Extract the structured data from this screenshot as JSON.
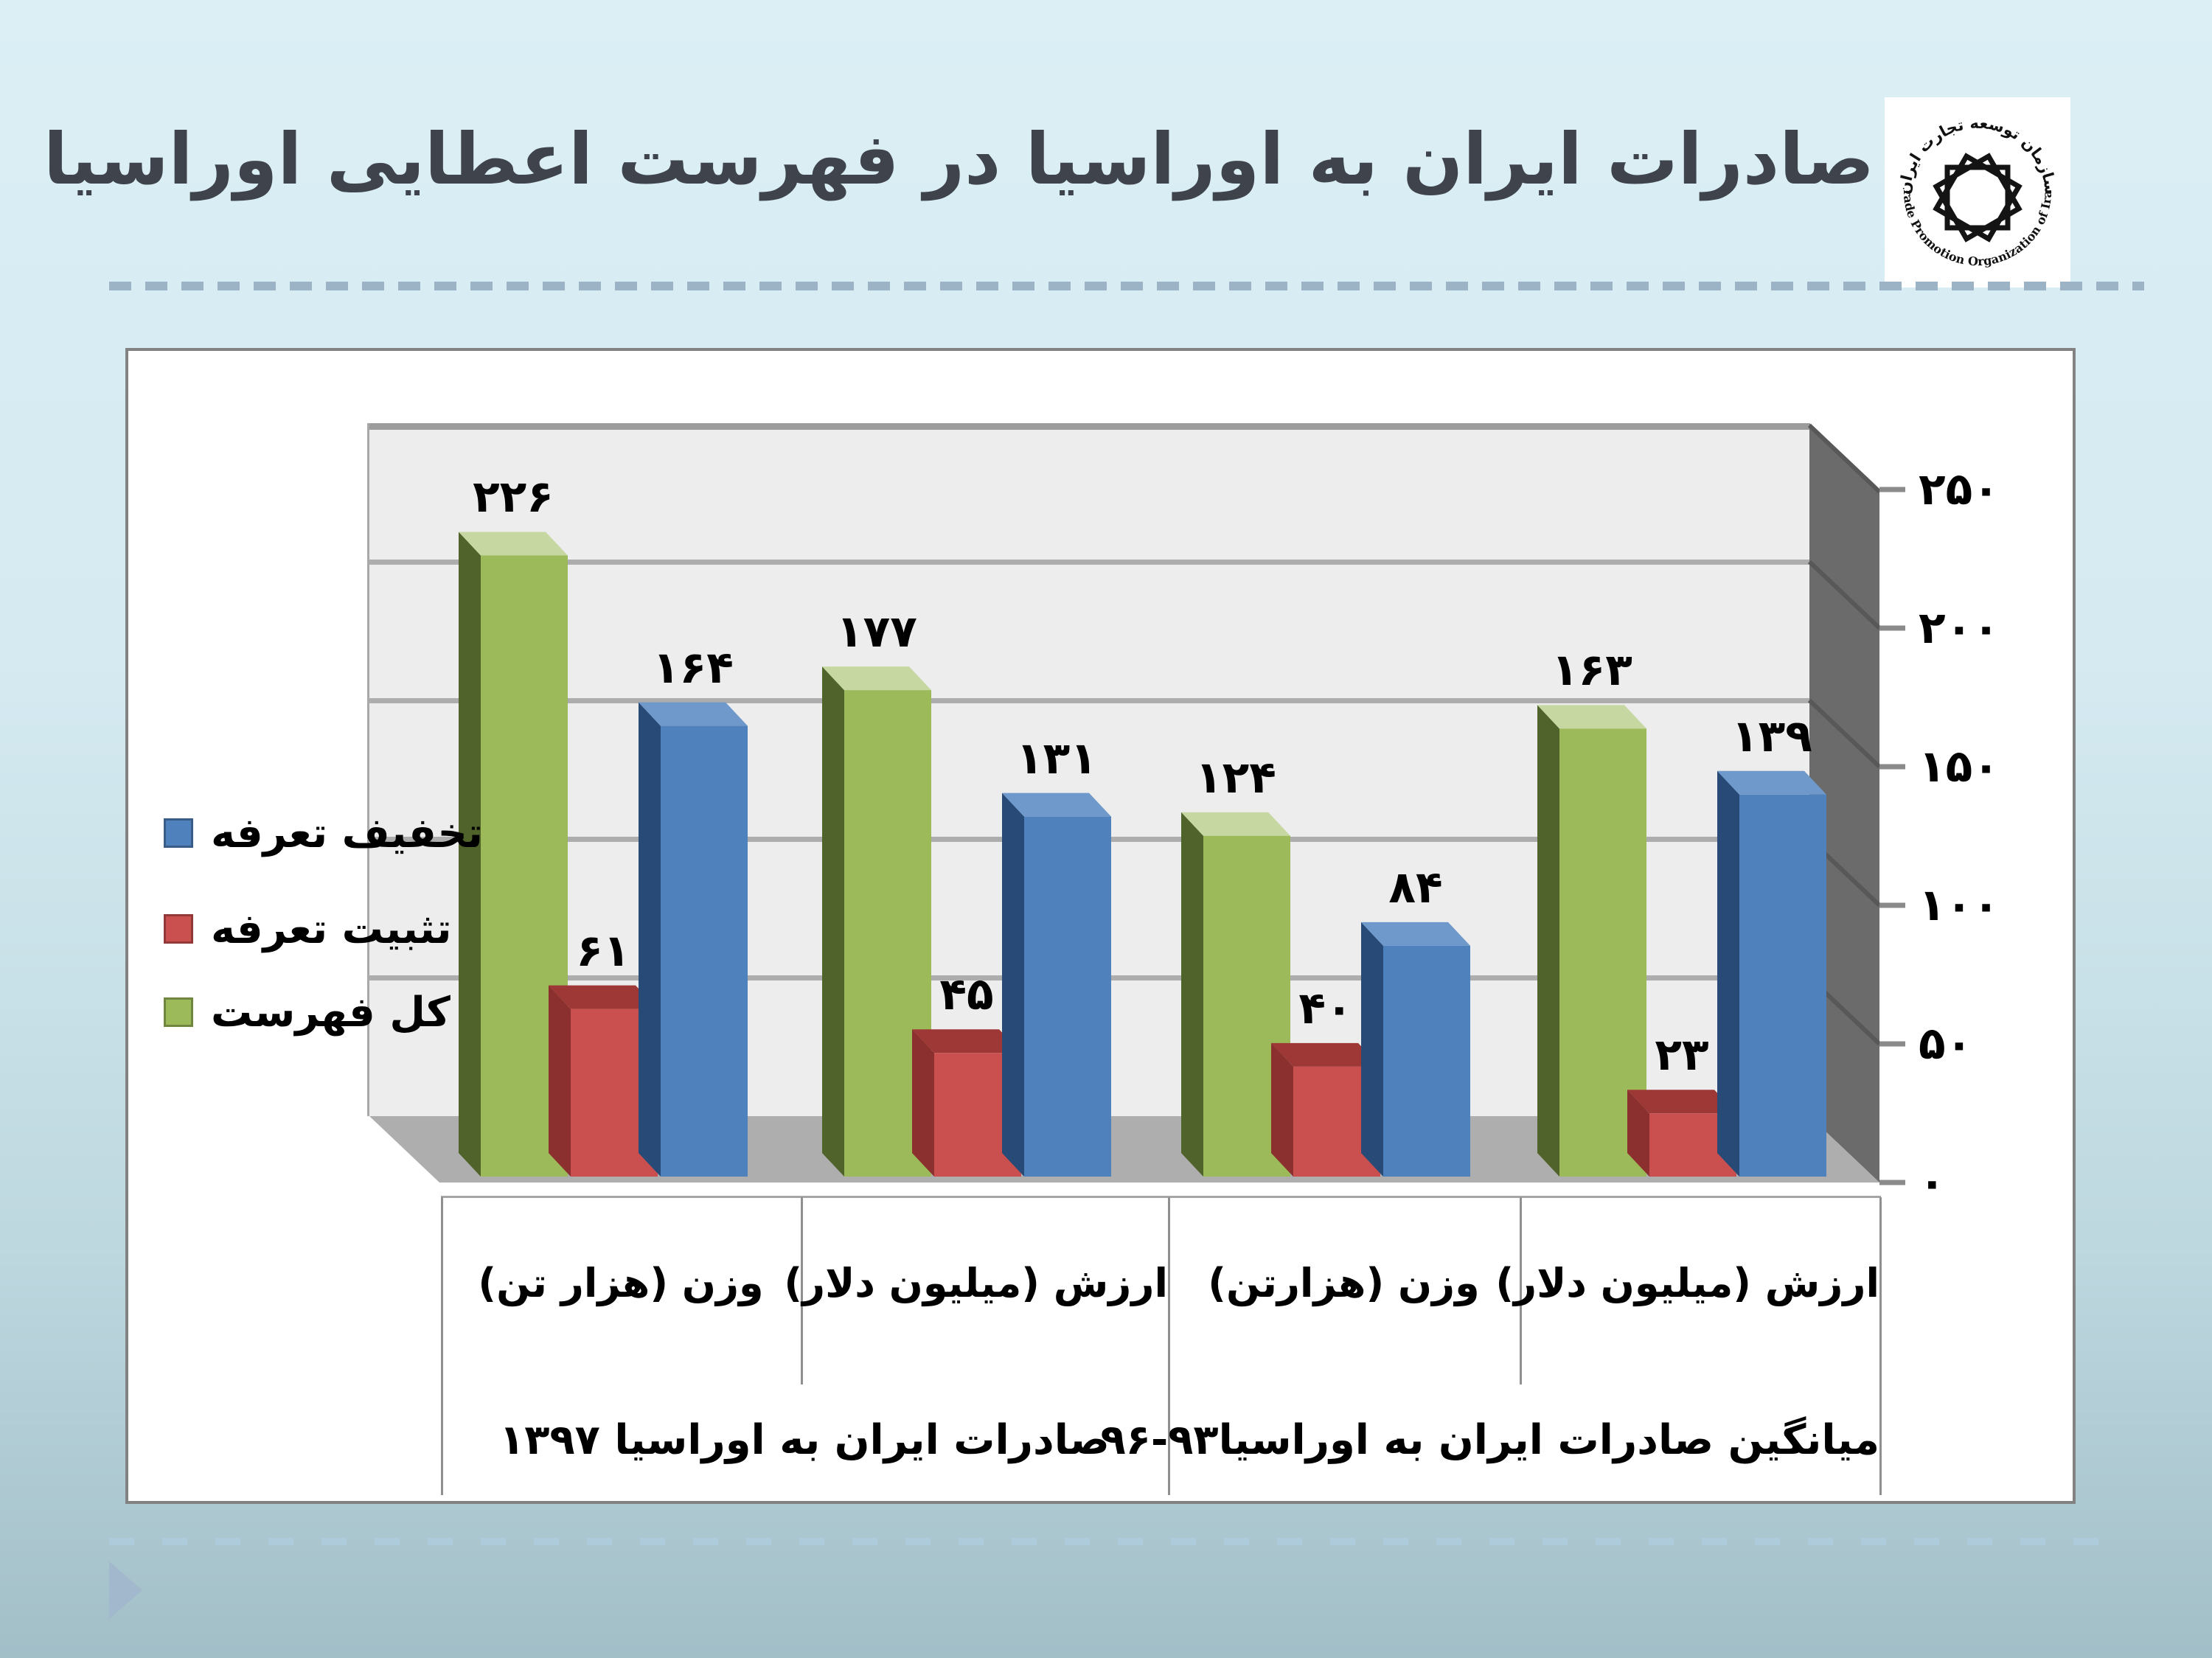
{
  "slide": {
    "title": "صادرات ایران به اوراسیا در فهرست اعطایی اوراسیا"
  },
  "logo": {
    "top_text": "سازمان توسعه تجارت ایران",
    "bottom_text": "Trade Promotion Organization of Iran"
  },
  "chart_data": {
    "type": "bar",
    "style": "3d-clustered-column",
    "direction": "rtl",
    "title": "",
    "xlabel": "",
    "ylabel": "",
    "ylim": [
      0,
      250
    ],
    "grid": true,
    "legend_position": "left",
    "y_axis": {
      "ticks": [
        "۲۵۰",
        "۲۰۰",
        "۱۵۰",
        "۱۰۰",
        "۵۰",
        "۰"
      ],
      "values": [
        250,
        200,
        150,
        100,
        50,
        0
      ]
    },
    "legend": [
      {
        "label": "تخفیف تعرفه",
        "color": "#4f81bd"
      },
      {
        "label": "تثبیت تعرفه",
        "color": "#c9504e"
      },
      {
        "label": "کل فهرست",
        "color": "#9cba59"
      }
    ],
    "series_colors": {
      "تخفیف تعرفه": {
        "front": "#4f81bd",
        "top": "#6f99ca",
        "side": "#274a76"
      },
      "تثبیت تعرفه": {
        "front": "#c9504e",
        "top": "#9d3836",
        "side": "#8b302e"
      },
      "کل فهرست": {
        "front": "#9cba59",
        "top": "#c7d7a2",
        "side": "#50632a"
      }
    },
    "groups": [
      {
        "label": "صادرات ایران به اوراسیا ۱۳۹۷",
        "categories": [
          {
            "label": "وزن (هزار تن)",
            "bars": [
              {
                "series": "کل فهرست",
                "value": 226,
                "display": "۲۲۶"
              },
              {
                "series": "تثبیت تعرفه",
                "value": 61,
                "display": "۶۱"
              },
              {
                "series": "تخفیف تعرفه",
                "value": 164,
                "display": "۱۶۴"
              }
            ]
          },
          {
            "label": "ارزش (میلیون دلار)",
            "bars": [
              {
                "series": "کل فهرست",
                "value": 177,
                "display": "۱۷۷"
              },
              {
                "series": "تثبیت تعرفه",
                "value": 45,
                "display": "۴۵"
              },
              {
                "series": "تخفیف تعرفه",
                "value": 131,
                "display": "۱۳۱"
              }
            ]
          }
        ]
      },
      {
        "label": "میانگین صادرات ایران به اوراسیا۹۳-۹۶",
        "categories": [
          {
            "label": "وزن (هزارتن)",
            "bars": [
              {
                "series": "کل فهرست",
                "value": 124,
                "display": "۱۲۴"
              },
              {
                "series": "تثبیت تعرفه",
                "value": 40,
                "display": "۴۰"
              },
              {
                "series": "تخفیف تعرفه",
                "value": 84,
                "display": "۸۴"
              }
            ]
          },
          {
            "label": "ارزش (میلیون دلار)",
            "bars": [
              {
                "series": "کل فهرست",
                "value": 163,
                "display": "۱۶۳"
              },
              {
                "series": "تثبیت تعرفه",
                "value": 23,
                "display": "۲۳"
              },
              {
                "series": "تخفیف تعرفه",
                "value": 139,
                "display": "۱۳۹"
              }
            ]
          }
        ]
      }
    ]
  }
}
